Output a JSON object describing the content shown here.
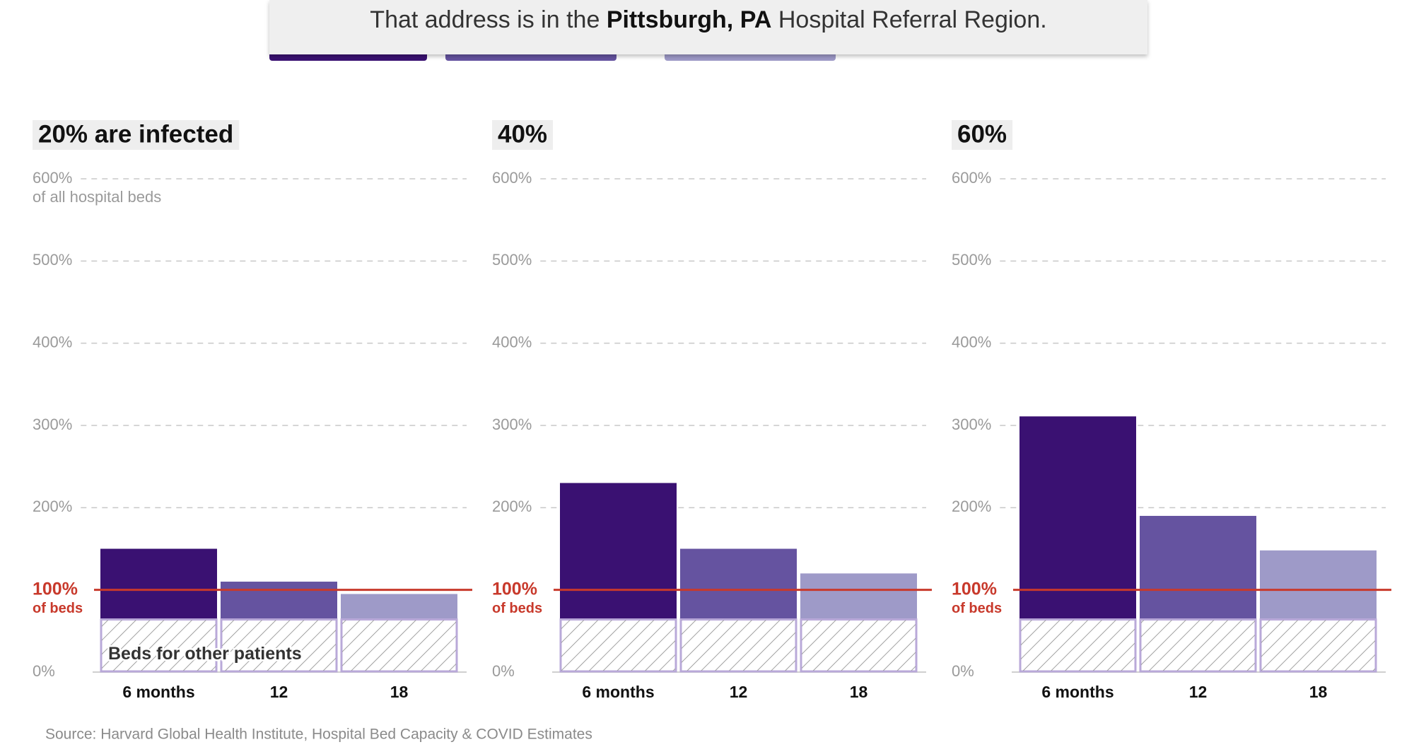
{
  "banner": {
    "prefix": "That address is in the ",
    "region": "Pittsburgh, PA",
    "suffix": " Hospital Referral Region."
  },
  "chart_data": [
    {
      "type": "bar",
      "title": "20% are infected",
      "categories": [
        "6 months",
        "12",
        "18"
      ],
      "values": [
        150,
        110,
        95
      ],
      "colors": [
        "#3a1172",
        "#6553a0",
        "#9e9ac8"
      ],
      "ylim": [
        0,
        600
      ],
      "yticks": [
        {
          "value": 0,
          "label": "0%"
        },
        {
          "value": 200,
          "label": "200%"
        },
        {
          "value": 300,
          "label": "300%"
        },
        {
          "value": 400,
          "label": "400%"
        },
        {
          "value": 500,
          "label": "500%"
        },
        {
          "value": 600,
          "label": "600%"
        }
      ],
      "ytick_note": "of all hospital beds",
      "grid": true,
      "reference": {
        "value": 100,
        "label": "100%",
        "note": "of beds",
        "color": "#c8392b"
      },
      "other_patients": {
        "value": 64,
        "label": "Beds for other patients"
      }
    },
    {
      "type": "bar",
      "title": "40%",
      "categories": [
        "6 months",
        "12",
        "18"
      ],
      "values": [
        230,
        150,
        120
      ],
      "colors": [
        "#3a1172",
        "#6553a0",
        "#9e9ac8"
      ],
      "ylim": [
        0,
        600
      ],
      "yticks": [
        {
          "value": 0,
          "label": "0%"
        },
        {
          "value": 200,
          "label": "200%"
        },
        {
          "value": 300,
          "label": "300%"
        },
        {
          "value": 400,
          "label": "400%"
        },
        {
          "value": 500,
          "label": "500%"
        },
        {
          "value": 600,
          "label": "600%"
        }
      ],
      "grid": true,
      "reference": {
        "value": 100,
        "label": "100%",
        "note": "of beds",
        "color": "#c8392b"
      },
      "other_patients": {
        "value": 64
      }
    },
    {
      "type": "bar",
      "title": "60%",
      "categories": [
        "6 months",
        "12",
        "18"
      ],
      "values": [
        311,
        190,
        148
      ],
      "colors": [
        "#3a1172",
        "#6553a0",
        "#9e9ac8"
      ],
      "ylim": [
        0,
        600
      ],
      "yticks": [
        {
          "value": 0,
          "label": "0%"
        },
        {
          "value": 200,
          "label": "200%"
        },
        {
          "value": 300,
          "label": "300%"
        },
        {
          "value": 400,
          "label": "400%"
        },
        {
          "value": 500,
          "label": "500%"
        },
        {
          "value": 600,
          "label": "600%"
        }
      ],
      "grid": true,
      "reference": {
        "value": 100,
        "label": "100%",
        "note": "of beds",
        "color": "#c8392b"
      },
      "other_patients": {
        "value": 64
      }
    }
  ],
  "source": "Source: Harvard Global Health Institute, Hospital Bed Capacity & COVID Estimates"
}
